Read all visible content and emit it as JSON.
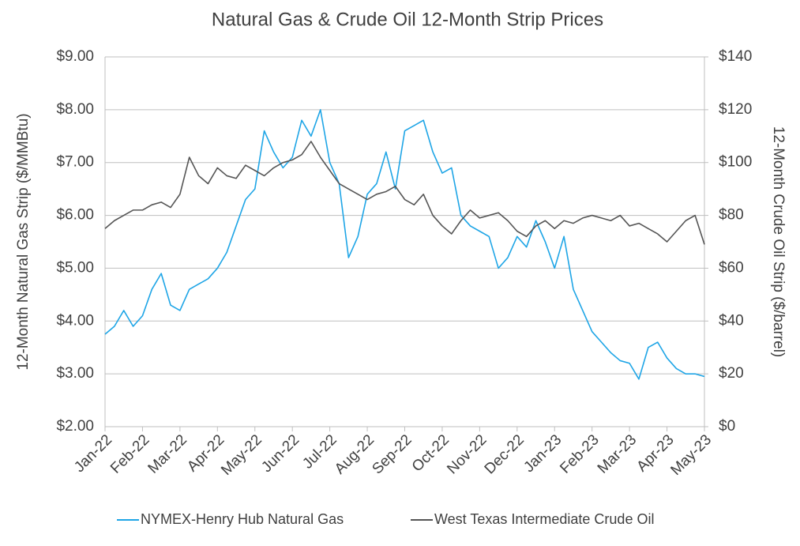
{
  "chart_data": {
    "type": "line",
    "title": "Natural Gas & Crude Oil 12-Month Strip Prices",
    "y_label": "12-Month Natural Gas Strip ($/MMBtu)",
    "y2_label": "12-Month Crude Oil Strip ($/barrel)",
    "categories": [
      "Jan-22",
      null,
      null,
      null,
      "Feb-22",
      null,
      null,
      null,
      "Mar-22",
      null,
      null,
      null,
      "Apr-22",
      null,
      null,
      null,
      "May-22",
      null,
      null,
      null,
      "Jun-22",
      null,
      null,
      null,
      "Jul-22",
      null,
      null,
      null,
      "Aug-22",
      null,
      null,
      null,
      "Sep-22",
      null,
      null,
      null,
      "Oct-22",
      null,
      null,
      null,
      "Nov-22",
      null,
      null,
      null,
      "Dec-22",
      null,
      null,
      null,
      "Jan-23",
      null,
      null,
      null,
      "Feb-23",
      null,
      null,
      null,
      "Mar-23",
      null,
      null,
      null,
      "Apr-23",
      null,
      null,
      null,
      "May-23"
    ],
    "ylim": [
      2,
      9
    ],
    "yticks": [
      {
        "value": 2,
        "label": "$2.00"
      },
      {
        "value": 3,
        "label": "$3.00"
      },
      {
        "value": 4,
        "label": "$4.00"
      },
      {
        "value": 5,
        "label": "$5.00"
      },
      {
        "value": 6,
        "label": "$6.00"
      },
      {
        "value": 7,
        "label": "$7.00"
      },
      {
        "value": 8,
        "label": "$8.00"
      },
      {
        "value": 9,
        "label": "$9.00"
      }
    ],
    "y2lim": [
      0,
      140
    ],
    "y2ticks": [
      {
        "value": 0,
        "label": "$0"
      },
      {
        "value": 20,
        "label": "$20"
      },
      {
        "value": 40,
        "label": "$40"
      },
      {
        "value": 60,
        "label": "$60"
      },
      {
        "value": 80,
        "label": "$80"
      },
      {
        "value": 100,
        "label": "$100"
      },
      {
        "value": 120,
        "label": "$120"
      },
      {
        "value": 140,
        "label": "$140"
      }
    ],
    "grid": true,
    "legend": "bottom",
    "series": [
      {
        "name": "NYMEX-Henry Hub Natural Gas",
        "color": "#1ea5e6",
        "values": [
          3.75,
          3.9,
          4.2,
          3.9,
          4.1,
          4.6,
          4.9,
          4.3,
          4.2,
          4.6,
          4.7,
          4.8,
          5.0,
          5.3,
          5.8,
          6.3,
          6.5,
          7.6,
          7.2,
          6.9,
          7.1,
          7.8,
          7.5,
          8.0,
          7.0,
          6.6,
          5.2,
          5.6,
          6.4,
          6.6,
          7.2,
          6.5,
          7.6,
          7.7,
          7.8,
          7.2,
          6.8,
          6.9,
          6.0,
          5.8,
          5.7,
          5.6,
          5.0,
          5.2,
          5.6,
          5.4,
          5.9,
          5.5,
          5.0,
          5.6,
          4.6,
          4.2,
          3.8,
          3.6,
          3.4,
          3.25,
          3.2,
          2.9,
          3.5,
          3.6,
          3.3,
          3.1,
          3.0,
          3.0,
          2.95
        ]
      },
      {
        "name": "West Texas Intermediate Crude Oil",
        "color": "#555555",
        "axis": "y2",
        "values": [
          75,
          78,
          80,
          82,
          82,
          84,
          85,
          83,
          88,
          102,
          95,
          92,
          98,
          95,
          94,
          99,
          97,
          95,
          98,
          100,
          101,
          103,
          108,
          102,
          97,
          92,
          90,
          88,
          86,
          88,
          89,
          91,
          86,
          84,
          88,
          80,
          76,
          73,
          78,
          82,
          79,
          80,
          81,
          78,
          74,
          72,
          76,
          78,
          75,
          78,
          77,
          79,
          80,
          79,
          78,
          80,
          76,
          77,
          75,
          73,
          70,
          74,
          78,
          80,
          69
        ]
      }
    ]
  }
}
